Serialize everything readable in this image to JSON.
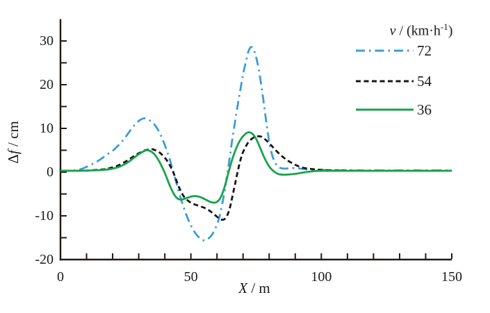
{
  "figure": {
    "background": "#ffffff",
    "axis_color": "#231815",
    "text_color": "#1a1a1a"
  },
  "axes": {
    "y_title_delta": "Δ",
    "y_title_var": "f",
    "y_title_unit": " / cm",
    "x_title_var": "X",
    "x_title_unit": " / m",
    "x_tick_labels": [
      "0",
      "50",
      "100",
      "150"
    ],
    "y_tick_labels": [
      "-20",
      "-10",
      "0",
      "10",
      "20",
      "30"
    ]
  },
  "legend": {
    "title_var": "v",
    "title_mid": " / (km·h",
    "title_sup": "-1",
    "title_end": ")",
    "items": [
      {
        "label": "72"
      },
      {
        "label": "54"
      },
      {
        "label": "36"
      }
    ]
  },
  "chart_data": {
    "type": "line",
    "title": "",
    "xlabel": "X / m",
    "ylabel": "Δf / cm",
    "xlim": [
      0,
      150
    ],
    "ylim": [
      -20,
      35
    ],
    "x_ticks_major": [
      0,
      50,
      100,
      150
    ],
    "x_tick_minor_step": 10,
    "y_ticks_major": [
      -20,
      -10,
      0,
      10,
      20,
      30
    ],
    "y_tick_minor_step": 5,
    "grid": false,
    "legend_title": "v / (km·h⁻¹)",
    "legend_position": "upper right",
    "series": [
      {
        "name": "72",
        "units": "km/h",
        "color": "#3c9cd7",
        "style": "dash-dot",
        "points": [
          [
            0,
            0.3
          ],
          [
            4,
            0.35
          ],
          [
            6,
            0.45
          ],
          [
            8,
            0.7
          ],
          [
            10,
            1.2
          ],
          [
            12,
            1.8
          ],
          [
            14,
            2.4
          ],
          [
            16,
            3.2
          ],
          [
            18,
            4.1
          ],
          [
            20,
            4.9
          ],
          [
            22,
            6.0
          ],
          [
            24,
            7.3
          ],
          [
            26,
            8.9
          ],
          [
            28,
            10.5
          ],
          [
            30,
            11.7
          ],
          [
            31,
            12.1
          ],
          [
            32,
            12.3
          ],
          [
            33,
            12.2
          ],
          [
            34,
            11.9
          ],
          [
            36,
            10.9
          ],
          [
            38,
            9.0
          ],
          [
            40,
            6.2
          ],
          [
            42,
            2.7
          ],
          [
            44,
            -1.5
          ],
          [
            46,
            -5.8
          ],
          [
            48,
            -9.4
          ],
          [
            50,
            -12.2
          ],
          [
            52,
            -14.2
          ],
          [
            54,
            -15.4
          ],
          [
            55,
            -15.6
          ],
          [
            56,
            -15.5
          ],
          [
            58,
            -14.4
          ],
          [
            60,
            -12.0
          ],
          [
            61,
            -10.0
          ],
          [
            62,
            -7.3
          ],
          [
            63,
            -4.0
          ],
          [
            64,
            -0.2
          ],
          [
            65,
            3.8
          ],
          [
            66,
            8.0
          ],
          [
            68,
            15.5
          ],
          [
            70,
            22.3
          ],
          [
            71,
            25.0
          ],
          [
            72,
            27.5
          ],
          [
            73,
            28.6
          ],
          [
            74,
            28.1
          ],
          [
            75,
            26.3
          ],
          [
            76,
            23.5
          ],
          [
            77,
            19.8
          ],
          [
            78,
            15.5
          ],
          [
            79,
            11.0
          ],
          [
            80,
            7.0
          ],
          [
            81,
            4.2
          ],
          [
            82,
            2.5
          ],
          [
            83,
            1.5
          ],
          [
            84,
            1.0
          ],
          [
            86,
            0.8
          ],
          [
            88,
            0.9
          ],
          [
            90,
            0.9
          ],
          [
            92,
            0.8
          ],
          [
            95,
            0.6
          ],
          [
            100,
            0.5
          ],
          [
            105,
            0.45
          ],
          [
            115,
            0.4
          ],
          [
            130,
            0.4
          ],
          [
            150,
            0.4
          ]
        ]
      },
      {
        "name": "54",
        "units": "km/h",
        "color": "#161616",
        "style": "dashed",
        "points": [
          [
            0,
            0.3
          ],
          [
            5,
            0.3
          ],
          [
            10,
            0.35
          ],
          [
            14,
            0.5
          ],
          [
            16,
            0.6
          ],
          [
            18,
            0.8
          ],
          [
            20,
            1.1
          ],
          [
            22,
            1.5
          ],
          [
            24,
            2.1
          ],
          [
            26,
            2.8
          ],
          [
            28,
            3.6
          ],
          [
            30,
            4.3
          ],
          [
            32,
            4.9
          ],
          [
            34,
            5.2
          ],
          [
            35,
            5.25
          ],
          [
            36,
            5.1
          ],
          [
            38,
            4.5
          ],
          [
            40,
            3.3
          ],
          [
            41,
            2.5
          ],
          [
            42,
            1.5
          ],
          [
            43,
            0.3
          ],
          [
            44,
            -1.2
          ],
          [
            45,
            -2.8
          ],
          [
            46,
            -4.2
          ],
          [
            47,
            -5.3
          ],
          [
            48,
            -6.1
          ],
          [
            50,
            -7.0
          ],
          [
            52,
            -7.5
          ],
          [
            54,
            -7.9
          ],
          [
            56,
            -8.4
          ],
          [
            58,
            -9.2
          ],
          [
            60,
            -10.2
          ],
          [
            61,
            -10.7
          ],
          [
            62,
            -10.9
          ],
          [
            63,
            -10.7
          ],
          [
            64,
            -9.8
          ],
          [
            65,
            -8.0
          ],
          [
            66,
            -5.3
          ],
          [
            67,
            -2.5
          ],
          [
            68,
            0.3
          ],
          [
            69,
            2.8
          ],
          [
            70,
            4.6
          ],
          [
            72,
            6.8
          ],
          [
            74,
            7.9
          ],
          [
            75,
            8.1
          ],
          [
            76,
            8.2
          ],
          [
            77,
            8.1
          ],
          [
            78,
            7.7
          ],
          [
            79,
            7.2
          ],
          [
            81,
            6.0
          ],
          [
            83,
            4.7
          ],
          [
            85,
            3.6
          ],
          [
            87,
            2.7
          ],
          [
            89,
            2.0
          ],
          [
            91,
            1.4
          ],
          [
            93,
            1.0
          ],
          [
            95,
            0.8
          ],
          [
            98,
            0.6
          ],
          [
            100,
            0.5
          ],
          [
            104,
            0.4
          ],
          [
            110,
            0.35
          ],
          [
            120,
            0.3
          ],
          [
            135,
            0.3
          ],
          [
            150,
            0.3
          ]
        ]
      },
      {
        "name": "36",
        "units": "km/h",
        "color": "#18a24c",
        "style": "solid",
        "points": [
          [
            0,
            0.3
          ],
          [
            5,
            0.3
          ],
          [
            10,
            0.35
          ],
          [
            15,
            0.45
          ],
          [
            18,
            0.6
          ],
          [
            20,
            0.8
          ],
          [
            22,
            1.1
          ],
          [
            24,
            1.6
          ],
          [
            26,
            2.3
          ],
          [
            28,
            3.2
          ],
          [
            30,
            4.1
          ],
          [
            32,
            4.8
          ],
          [
            33,
            5.0
          ],
          [
            34,
            4.9
          ],
          [
            35,
            4.6
          ],
          [
            36,
            4.1
          ],
          [
            37,
            3.3
          ],
          [
            38,
            2.3
          ],
          [
            39,
            1.1
          ],
          [
            40,
            -0.2
          ],
          [
            41,
            -1.7
          ],
          [
            42,
            -3.2
          ],
          [
            43,
            -4.5
          ],
          [
            44,
            -5.5
          ],
          [
            45,
            -6.1
          ],
          [
            46,
            -6.3
          ],
          [
            47,
            -6.2
          ],
          [
            48,
            -6.0
          ],
          [
            50,
            -5.6
          ],
          [
            51,
            -5.5
          ],
          [
            52,
            -5.5
          ],
          [
            53,
            -5.6
          ],
          [
            54,
            -5.8
          ],
          [
            55,
            -6.1
          ],
          [
            56,
            -6.4
          ],
          [
            57,
            -6.7
          ],
          [
            58,
            -6.9
          ],
          [
            59,
            -7.0
          ],
          [
            60,
            -6.8
          ],
          [
            61,
            -6.2
          ],
          [
            62,
            -5.0
          ],
          [
            63,
            -3.2
          ],
          [
            64,
            -1.0
          ],
          [
            65,
            1.2
          ],
          [
            66,
            3.2
          ],
          [
            67,
            4.9
          ],
          [
            68,
            6.3
          ],
          [
            69,
            7.4
          ],
          [
            70,
            8.2
          ],
          [
            71,
            8.8
          ],
          [
            72,
            9.1
          ],
          [
            73,
            9.0
          ],
          [
            74,
            8.5
          ],
          [
            75,
            7.6
          ],
          [
            76,
            6.3
          ],
          [
            77,
            4.9
          ],
          [
            78,
            3.5
          ],
          [
            79,
            2.3
          ],
          [
            80,
            1.3
          ],
          [
            81,
            0.6
          ],
          [
            82,
            0.1
          ],
          [
            83,
            -0.3
          ],
          [
            84,
            -0.5
          ],
          [
            86,
            -0.6
          ],
          [
            88,
            -0.5
          ],
          [
            90,
            -0.4
          ],
          [
            92,
            -0.2
          ],
          [
            94,
            0.0
          ],
          [
            96,
            0.15
          ],
          [
            98,
            0.25
          ],
          [
            100,
            0.3
          ],
          [
            110,
            0.3
          ],
          [
            120,
            0.3
          ],
          [
            135,
            0.3
          ],
          [
            150,
            0.3
          ]
        ]
      }
    ]
  }
}
